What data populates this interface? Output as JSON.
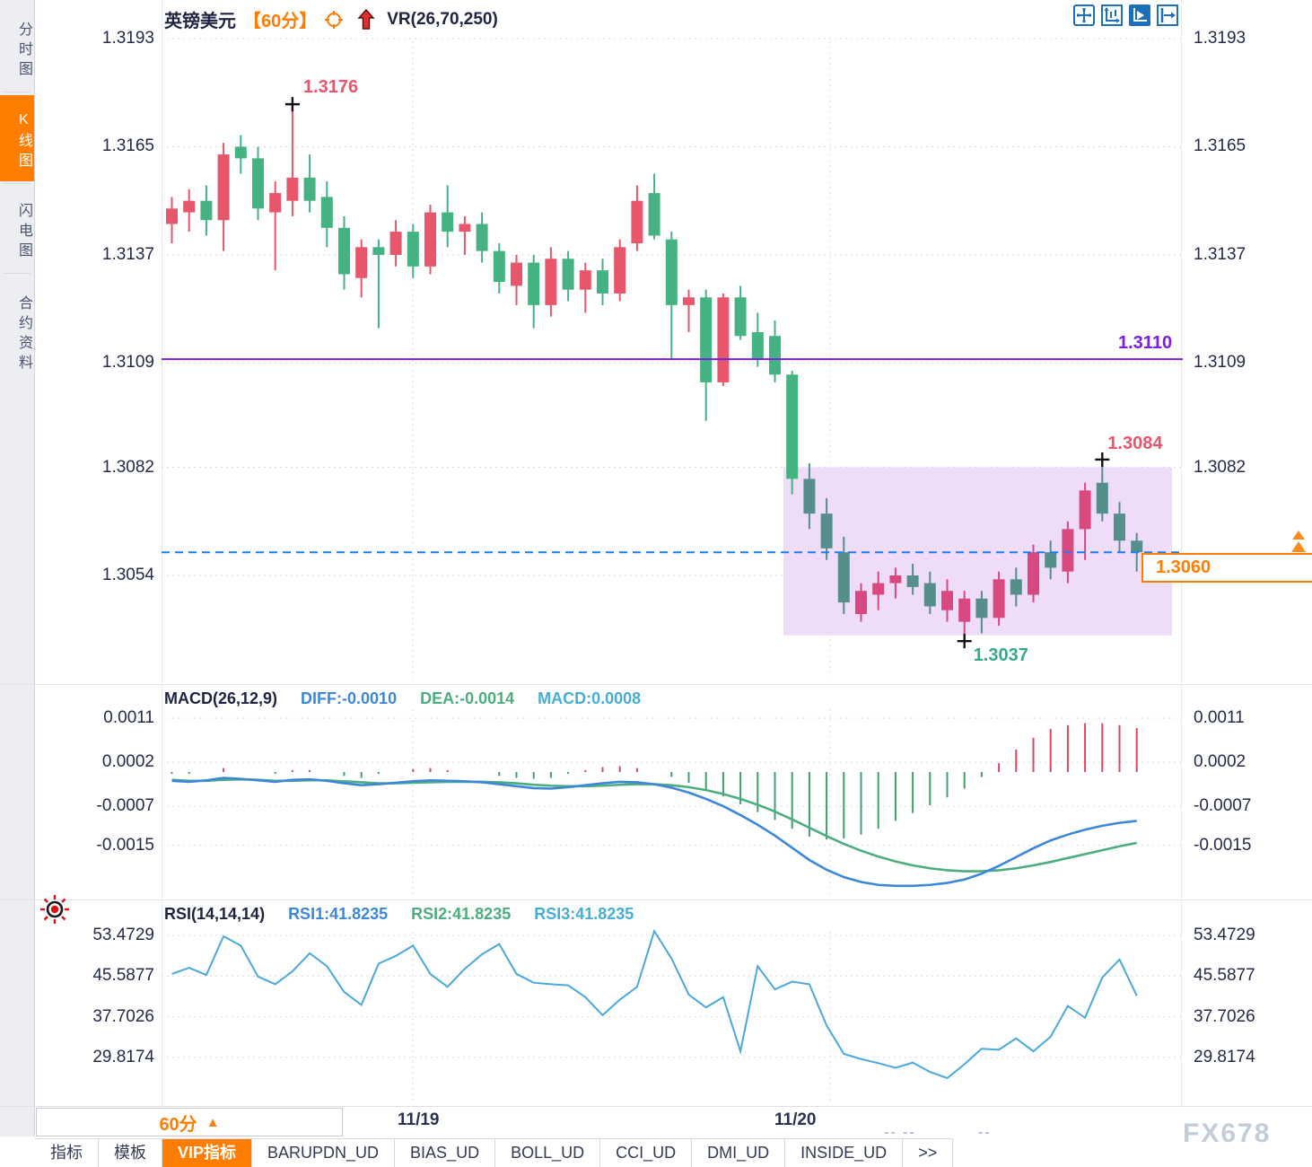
{
  "header": {
    "title": "英镑美元",
    "period_tag": "【60分】",
    "vr_label": "VR(26,70,250)",
    "icons": [
      "target-icon",
      "up-arrow-icon"
    ],
    "toolbar_icons": [
      "move-crosshair-icon",
      "axis-range-icon",
      "axis-play-icon",
      "pan-right-icon"
    ]
  },
  "sidebar": {
    "items": [
      {
        "label": "分时图",
        "active": false
      },
      {
        "label": "K线图",
        "active": true
      },
      {
        "label": "闪电图",
        "active": false
      },
      {
        "label": "合约资料",
        "active": false
      }
    ]
  },
  "colors": {
    "accent_orange": "#ff7d00",
    "candle_up_red": "#e8566b",
    "candle_down_green": "#44b381",
    "box_up_pink": "#d9487e",
    "box_down_teal": "#568e8c",
    "purple_line": "#7a1fe0",
    "dashed_blue": "#1f7ce8",
    "lavender_box": "#eedcf9",
    "diff_blue": "#3d87d9",
    "dea_green": "#4cae7f",
    "macd_cyan": "#45aed6",
    "rsi_blue": "#49a8dc",
    "hist_red": "#d9485f",
    "hist_green": "#41a06c"
  },
  "chart_data": [
    {
      "type": "candlestick",
      "title": "英镑美元 60分 K线",
      "x_dates": [
        "11/19",
        "11/20"
      ],
      "y_ticks": [
        1.3193,
        1.3165,
        1.3137,
        1.3109,
        1.3082,
        1.3054
      ],
      "y_tick_labels": [
        "1.3193",
        "1.3165",
        "1.3137",
        "1.3109",
        "1.3082",
        "1.3054"
      ],
      "price_base": 1.3,
      "candles_ohlc_pips": [
        [
          145,
          152,
          140,
          149
        ],
        [
          148,
          154,
          143,
          151
        ],
        [
          151,
          155,
          142,
          146
        ],
        [
          146,
          166,
          138,
          163
        ],
        [
          165,
          168,
          158,
          162
        ],
        [
          162,
          165,
          146,
          149
        ],
        [
          148,
          156,
          133,
          153
        ],
        [
          151,
          176,
          147,
          157
        ],
        [
          157,
          163,
          148,
          151
        ],
        [
          152,
          156,
          139,
          144
        ],
        [
          144,
          147,
          128,
          132
        ],
        [
          131,
          141,
          126,
          139
        ],
        [
          139,
          141,
          118,
          137
        ],
        [
          137,
          146,
          134,
          143
        ],
        [
          143,
          145,
          131,
          134
        ],
        [
          134,
          150,
          132,
          148
        ],
        [
          148,
          155,
          139,
          143
        ],
        [
          143,
          147,
          137,
          145
        ],
        [
          145,
          148,
          135,
          138
        ],
        [
          138,
          140,
          127,
          130
        ],
        [
          129,
          137,
          124,
          135
        ],
        [
          135,
          137,
          118,
          124
        ],
        [
          124,
          139,
          121,
          136
        ],
        [
          136,
          138,
          125,
          128
        ],
        [
          128,
          135,
          122,
          133
        ],
        [
          133,
          136,
          124,
          127
        ],
        [
          127,
          141,
          125,
          139
        ],
        [
          140,
          155,
          138,
          151
        ],
        [
          153,
          158,
          141,
          142
        ],
        [
          141,
          143,
          110,
          124
        ],
        [
          124,
          128,
          117,
          126
        ],
        [
          126,
          128,
          94,
          104
        ],
        [
          104,
          127,
          103,
          126
        ],
        [
          126,
          129,
          115,
          116
        ],
        [
          117,
          122,
          108,
          110
        ],
        [
          116,
          120,
          104,
          106
        ],
        [
          106,
          107,
          75,
          79
        ],
        [
          79,
          83,
          66,
          70
        ],
        [
          70,
          74,
          58,
          61
        ],
        [
          60,
          64,
          44,
          47
        ],
        [
          44,
          52,
          42,
          50
        ],
        [
          49,
          55,
          45,
          52
        ],
        [
          52,
          56,
          48,
          54
        ],
        [
          54,
          57,
          49,
          51
        ],
        [
          52,
          55,
          44,
          46
        ],
        [
          45,
          53,
          42,
          50
        ],
        [
          42,
          50,
          37,
          48
        ],
        [
          48,
          50,
          39,
          43
        ],
        [
          43,
          55,
          41,
          53
        ],
        [
          53,
          56,
          46,
          49
        ],
        [
          49,
          62,
          47,
          60
        ],
        [
          60,
          63,
          53,
          56
        ],
        [
          55,
          68,
          52,
          66
        ],
        [
          66,
          78,
          58,
          76
        ],
        [
          78,
          84,
          68,
          70
        ],
        [
          70,
          73,
          60,
          63
        ],
        [
          63,
          65,
          55,
          60
        ]
      ],
      "box_zone": {
        "price_top": 1.3082,
        "price_bottom": 1.30385,
        "x_from": 873,
        "x_to": 1306
      },
      "annotations": {
        "high": {
          "text": "1.3176",
          "price": 1.3176,
          "candle_index": 7
        },
        "swing": {
          "text": "1.3084",
          "price": 1.3084,
          "candle_index": 54
        },
        "low": {
          "text": "1.3037",
          "price": 1.3037,
          "candle_index": 46
        },
        "hline": {
          "text": "1.3110",
          "price": 1.311
        },
        "current": {
          "text": "1.3060",
          "price": 1.306
        }
      }
    },
    {
      "type": "macd",
      "params": "MACD(26,12,9)",
      "labels": {
        "diff": "DIFF:-0.0010",
        "dea": "DEA:-0.0014",
        "macd": "MACD:0.0008"
      },
      "y_ticks": [
        0.0011,
        0.0002,
        -0.0007,
        -0.0015
      ],
      "y_tick_labels": [
        "0.0011",
        "0.0002",
        "-0.0007",
        "-0.0015"
      ],
      "diff_1e4": [
        -1.8,
        -2.0,
        -1.7,
        -1.2,
        -1.4,
        -1.7,
        -2.0,
        -1.6,
        -1.5,
        -1.8,
        -2.3,
        -2.7,
        -2.5,
        -2.2,
        -1.9,
        -1.7,
        -1.8,
        -1.9,
        -2.1,
        -2.5,
        -2.9,
        -3.3,
        -3.4,
        -3.1,
        -2.7,
        -2.3,
        -2.0,
        -2.1,
        -2.5,
        -3.2,
        -4.2,
        -5.5,
        -7.0,
        -8.8,
        -10.8,
        -13.0,
        -15.5,
        -18.0,
        -20.0,
        -21.5,
        -22.5,
        -23.1,
        -23.3,
        -23.3,
        -23.1,
        -22.7,
        -22.0,
        -20.8,
        -19.2,
        -17.4,
        -15.6,
        -14.0,
        -12.8,
        -11.8,
        -11.0,
        -10.4,
        -10.0
      ],
      "dea_1e4": [
        -1.6,
        -1.8,
        -1.8,
        -1.6,
        -1.5,
        -1.6,
        -1.8,
        -1.8,
        -1.7,
        -1.7,
        -1.9,
        -2.1,
        -2.3,
        -2.3,
        -2.2,
        -2.1,
        -2.0,
        -2.0,
        -2.0,
        -2.1,
        -2.3,
        -2.6,
        -2.8,
        -2.9,
        -2.9,
        -2.8,
        -2.6,
        -2.5,
        -2.5,
        -2.7,
        -3.1,
        -3.7,
        -4.5,
        -5.5,
        -6.7,
        -8.1,
        -9.7,
        -11.4,
        -13.1,
        -14.7,
        -16.1,
        -17.3,
        -18.3,
        -19.1,
        -19.7,
        -20.1,
        -20.3,
        -20.3,
        -20.1,
        -19.7,
        -19.1,
        -18.4,
        -17.6,
        -16.8,
        -16.0,
        -15.2,
        -14.5
      ],
      "histogram_rule": "bar = 2 * (diff - dea)"
    },
    {
      "type": "line",
      "params": "RSI(14,14,14)",
      "labels": {
        "rsi1": "RSI1:41.8235",
        "rsi2": "RSI2:41.8235",
        "rsi3": "RSI3:41.8235"
      },
      "y_ticks": [
        53.4729,
        45.5877,
        37.7026,
        29.8174
      ],
      "y_tick_labels": [
        "53.4729",
        "45.5877",
        "37.7026",
        "29.8174"
      ],
      "values": [
        46,
        47.2,
        45.8,
        53.3,
        51.5,
        45.5,
        44,
        46.5,
        50,
        47.5,
        42.5,
        40,
        48,
        49.5,
        51.5,
        46,
        43.5,
        47,
        49.8,
        51.8,
        46,
        44.3,
        44,
        43.8,
        41.5,
        38,
        41,
        43.5,
        54.3,
        49,
        42,
        39.5,
        41.5,
        31,
        47.5,
        43,
        44.5,
        44,
        36,
        30.5,
        29.5,
        28.7,
        27.8,
        28.8,
        27,
        25.8,
        28.5,
        31.5,
        31.3,
        33.5,
        31,
        33.8,
        39.8,
        37.5,
        45.3,
        48.8,
        41.8
      ]
    }
  ],
  "bottom": {
    "period_button": "60分",
    "dropdown_arrow": "▲",
    "faded_marks": [
      "-- --",
      "--"
    ],
    "tabs": [
      {
        "label": "指标",
        "active": false
      },
      {
        "label": "模板",
        "active": false
      },
      {
        "label": "VIP指标",
        "active": true
      },
      {
        "label": "BARUPDN_UD",
        "active": false
      },
      {
        "label": "BIAS_UD",
        "active": false
      },
      {
        "label": "BOLL_UD",
        "active": false
      },
      {
        "label": "CCI_UD",
        "active": false
      },
      {
        "label": "DMI_UD",
        "active": false
      },
      {
        "label": "INSIDE_UD",
        "active": false
      },
      {
        "label": ">>",
        "active": false
      }
    ],
    "watermark": "FX678"
  }
}
